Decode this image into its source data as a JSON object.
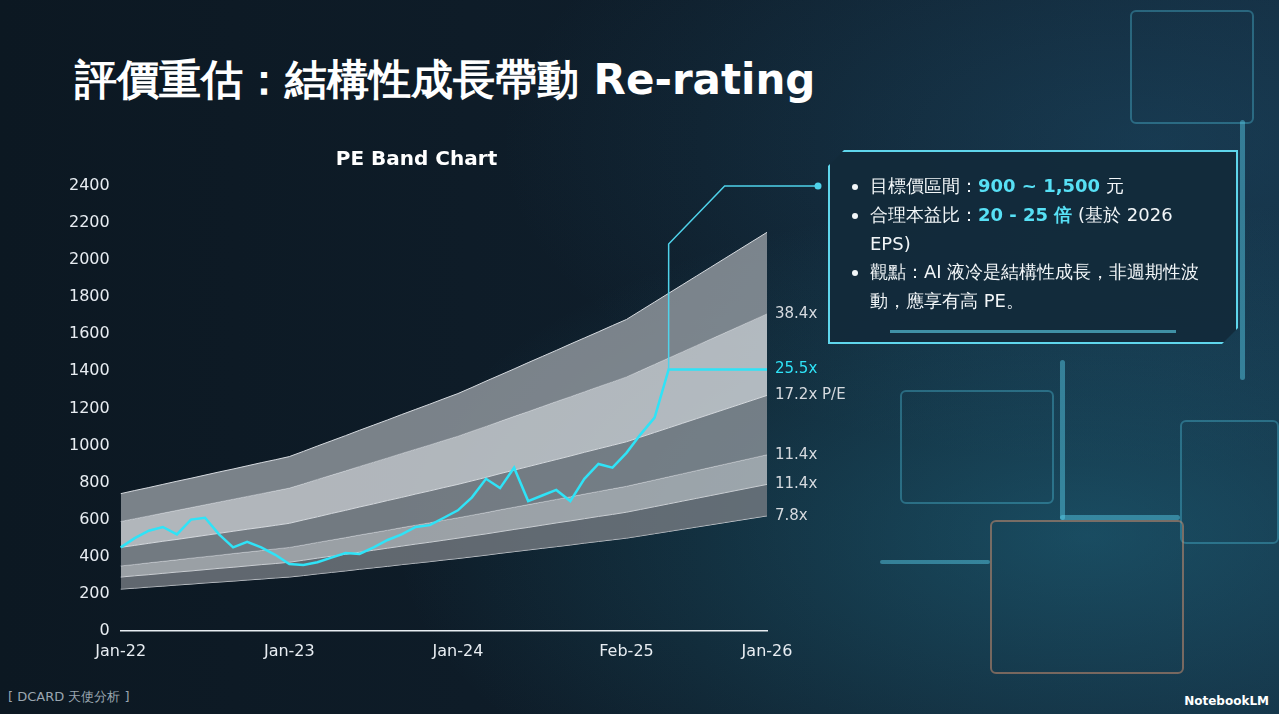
{
  "header": {
    "title": "評價重估：結構性成長帶動 Re-rating"
  },
  "chart_data": {
    "type": "line",
    "title": "PE Band Chart",
    "categories": [
      "Jan-22",
      null,
      null,
      null,
      null,
      null,
      null,
      null,
      null,
      null,
      null,
      null,
      "Jan-23",
      null,
      null,
      null,
      null,
      null,
      null,
      null,
      null,
      null,
      null,
      null,
      "Jan-24",
      null,
      null,
      null,
      null,
      null,
      null,
      null,
      null,
      null,
      null,
      null,
      "Feb-25",
      null,
      null,
      null,
      null,
      null,
      null,
      null,
      null,
      null,
      "Jan-26"
    ],
    "series": [
      {
        "name": "25.5x",
        "type": "line",
        "color": "#2fe3f7",
        "values": [
          450,
          500,
          540,
          560,
          520,
          600,
          610,
          520,
          450,
          480,
          450,
          410,
          360,
          355,
          370,
          395,
          420,
          415,
          450,
          490,
          520,
          560,
          570,
          610,
          650,
          720,
          820,
          770,
          880,
          700,
          730,
          760,
          700,
          820,
          900,
          880,
          960,
          1060,
          1150,
          1410,
          1410,
          1410,
          1410,
          1410,
          1410,
          1410,
          1410
        ]
      },
      {
        "type": "area",
        "color": "#d6dadf",
        "values": [
          740,
          757,
          773,
          790,
          807,
          823,
          840,
          857,
          873,
          890,
          907,
          923,
          940,
          968,
          997,
          1025,
          1053,
          1082,
          1110,
          1138,
          1167,
          1195,
          1223,
          1252,
          1280,
          1313,
          1347,
          1380,
          1413,
          1447,
          1480,
          1513,
          1547,
          1580,
          1613,
          1647,
          1680,
          1727,
          1774,
          1821,
          1868,
          1915,
          1962,
          2009,
          2056,
          2103,
          2150
        ]
      },
      {
        "name": "38.4x",
        "type": "area",
        "color": "#d6dadf",
        "values": [
          590,
          605,
          620,
          635,
          650,
          665,
          680,
          695,
          710,
          725,
          740,
          755,
          770,
          793,
          817,
          840,
          863,
          887,
          910,
          933,
          957,
          980,
          1003,
          1027,
          1050,
          1077,
          1103,
          1130,
          1157,
          1183,
          1210,
          1237,
          1263,
          1290,
          1317,
          1343,
          1370,
          1404,
          1438,
          1472,
          1506,
          1540,
          1574,
          1608,
          1642,
          1676,
          1710
        ]
      },
      {
        "name": "17.2x P/E",
        "type": "area",
        "color": "#d6dadf",
        "values": [
          450,
          461,
          472,
          483,
          493,
          504,
          515,
          526,
          537,
          548,
          558,
          569,
          580,
          598,
          615,
          633,
          650,
          668,
          685,
          703,
          720,
          738,
          755,
          773,
          790,
          809,
          828,
          848,
          867,
          886,
          905,
          924,
          943,
          963,
          982,
          1001,
          1020,
          1045,
          1070,
          1095,
          1120,
          1145,
          1170,
          1195,
          1220,
          1245,
          1270
        ]
      },
      {
        "name": "11.4x",
        "type": "area",
        "color": "#d6dadf",
        "values": [
          350,
          358,
          367,
          375,
          383,
          392,
          400,
          408,
          417,
          425,
          433,
          442,
          450,
          463,
          477,
          490,
          503,
          517,
          530,
          543,
          557,
          570,
          583,
          597,
          610,
          624,
          638,
          653,
          667,
          681,
          695,
          709,
          723,
          738,
          752,
          766,
          780,
          797,
          814,
          831,
          848,
          865,
          882,
          899,
          916,
          933,
          950
        ]
      },
      {
        "name": "11.4x",
        "type": "area",
        "color": "#d6dadf",
        "values": [
          290,
          297,
          303,
          310,
          317,
          323,
          330,
          337,
          343,
          350,
          357,
          363,
          370,
          381,
          392,
          403,
          413,
          424,
          435,
          446,
          457,
          468,
          478,
          489,
          500,
          512,
          523,
          535,
          547,
          558,
          570,
          582,
          593,
          605,
          617,
          628,
          640,
          655,
          670,
          685,
          700,
          715,
          730,
          745,
          760,
          775,
          790
        ]
      },
      {
        "name": "7.8x",
        "type": "line",
        "color": "#d6dadf",
        "values": [
          225,
          230,
          236,
          241,
          247,
          252,
          258,
          263,
          268,
          274,
          279,
          285,
          290,
          298,
          307,
          315,
          323,
          332,
          340,
          348,
          357,
          365,
          373,
          382,
          390,
          399,
          408,
          418,
          427,
          436,
          445,
          454,
          463,
          473,
          482,
          491,
          500,
          512,
          524,
          536,
          548,
          560,
          572,
          584,
          596,
          608,
          620
        ]
      }
    ],
    "ylim": [
      0,
      2400
    ],
    "yticks": [
      0,
      200,
      400,
      600,
      800,
      1000,
      1200,
      1400,
      1600,
      1800,
      2000,
      2200,
      2400
    ],
    "grid": false
  },
  "callout": {
    "items": [
      {
        "label": "目標價區間：",
        "value": "900 ~ 1,500",
        "suffix": " 元"
      },
      {
        "label": "合理本益比：",
        "value": "20 - 25 倍",
        "suffix": " (基於 2026 EPS)"
      },
      {
        "label": "觀點：",
        "text": "AI 液冷是結構性成長，非週期性波動，應享有高 PE。"
      }
    ]
  },
  "footer": {
    "source": "[ DCARD 天使分析 ]",
    "brand": "NotebookLM"
  }
}
